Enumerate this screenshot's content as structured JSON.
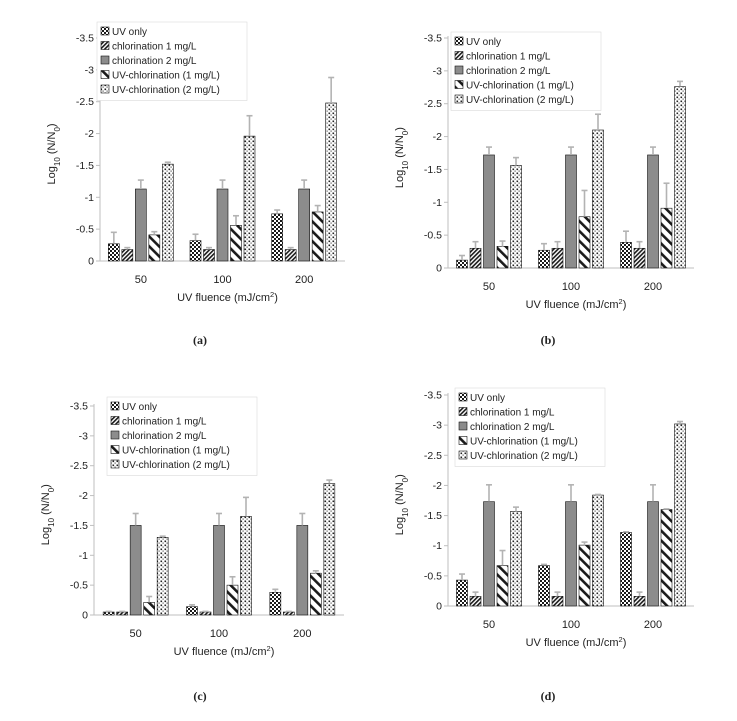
{
  "figure": {
    "panels": [
      "(a)",
      "(b)",
      "(c)",
      "(d)"
    ]
  },
  "colors": {
    "axis": "#bfbfbf",
    "text": "#222222",
    "error": "#b3b3b3",
    "grey_bar": "#8c8c8c",
    "frame": "#111111"
  },
  "chart_data": [
    {
      "type": "bar",
      "panel": "(a)",
      "categories": [
        "50",
        "100",
        "200"
      ],
      "xlabel": "UV fluence (mJ/cm²)",
      "ylabel": "Log10 (N/N0)",
      "ylim": [
        0,
        -3.5
      ],
      "yticks": [
        "0",
        "-0.5",
        "-1",
        "-1.5",
        "-2",
        "-2.5",
        "-3",
        "-3.5"
      ],
      "legend_position": "top-left",
      "series": [
        {
          "name": "UV only",
          "pattern": "checker",
          "values": [
            -0.27,
            -0.32,
            -0.74
          ],
          "errors": [
            0.18,
            0.1,
            0.06
          ]
        },
        {
          "name": "chlorination 1 mg/L",
          "pattern": "diagdense",
          "values": [
            -0.18,
            -0.18,
            -0.18
          ],
          "errors": [
            0.03,
            0.03,
            0.03
          ]
        },
        {
          "name": "chlorination 2 mg/L",
          "pattern": "grey",
          "values": [
            -1.13,
            -1.13,
            -1.13
          ],
          "errors": [
            0.14,
            0.14,
            0.14
          ]
        },
        {
          "name": "UV-chlorination (1 mg/L)",
          "pattern": "diag",
          "values": [
            -0.41,
            -0.56,
            -0.77
          ],
          "errors": [
            0.05,
            0.15,
            0.1
          ]
        },
        {
          "name": "UV-chlorination (2 mg/L)",
          "pattern": "dots",
          "values": [
            -1.52,
            -1.96,
            -2.48
          ],
          "errors": [
            0.03,
            0.32,
            0.4
          ]
        }
      ]
    },
    {
      "type": "bar",
      "panel": "(b)",
      "categories": [
        "50",
        "100",
        "200"
      ],
      "xlabel": "UV fluence (mJ/cm²)",
      "ylabel": "Log10 (N/N0)",
      "ylim": [
        0,
        -3.5
      ],
      "yticks": [
        "0",
        "-0.5",
        "-1",
        "-1.5",
        "-2",
        "-2.5",
        "-3",
        "-3.5"
      ],
      "legend_position": "top-left",
      "series": [
        {
          "name": "UV only",
          "pattern": "checker",
          "values": [
            -0.12,
            -0.27,
            -0.39
          ],
          "errors": [
            0.07,
            0.1,
            0.17
          ]
        },
        {
          "name": "chlorination 1 mg/L",
          "pattern": "diagdense",
          "values": [
            -0.3,
            -0.3,
            -0.3
          ],
          "errors": [
            0.1,
            0.1,
            0.1
          ]
        },
        {
          "name": "chlorination 2 mg/L",
          "pattern": "grey",
          "values": [
            -1.72,
            -1.72,
            -1.72
          ],
          "errors": [
            0.12,
            0.12,
            0.12
          ]
        },
        {
          "name": "UV-chlorination (1 mg/L)",
          "pattern": "diag",
          "values": [
            -0.33,
            -0.78,
            -0.91
          ],
          "errors": [
            0.08,
            0.4,
            0.38
          ]
        },
        {
          "name": "UV-chlorination (2 mg/L)",
          "pattern": "dots",
          "values": [
            -1.56,
            -2.1,
            -2.76
          ],
          "errors": [
            0.12,
            0.24,
            0.08
          ]
        }
      ]
    },
    {
      "type": "bar",
      "panel": "(c)",
      "categories": [
        "50",
        "100",
        "200"
      ],
      "xlabel": "UV fluence (mJ/cm²)",
      "ylabel": "Log10 (N/N0)",
      "ylim": [
        0,
        -3.5
      ],
      "yticks": [
        "0",
        "-0.5",
        "-1",
        "-1.5",
        "-2",
        "-2.5",
        "-3",
        "-3.5"
      ],
      "legend_position": "top-left",
      "series": [
        {
          "name": "UV only",
          "pattern": "checker",
          "values": [
            -0.05,
            -0.14,
            -0.38
          ],
          "errors": [
            0.01,
            0.03,
            0.05
          ]
        },
        {
          "name": "chlorination 1 mg/L",
          "pattern": "diagdense",
          "values": [
            -0.05,
            -0.05,
            -0.05
          ],
          "errors": [
            0.01,
            0.01,
            0.01
          ]
        },
        {
          "name": "chlorination 2 mg/L",
          "pattern": "grey",
          "values": [
            -1.5,
            -1.5,
            -1.5
          ],
          "errors": [
            0.2,
            0.2,
            0.2
          ]
        },
        {
          "name": "UV-chlorination (1 mg/L)",
          "pattern": "diag",
          "values": [
            -0.21,
            -0.5,
            -0.7
          ],
          "errors": [
            0.1,
            0.14,
            0.04
          ]
        },
        {
          "name": "UV-chlorination (2 mg/L)",
          "pattern": "dots",
          "values": [
            -1.3,
            -1.65,
            -2.2
          ],
          "errors": [
            0.02,
            0.32,
            0.06
          ]
        }
      ]
    },
    {
      "type": "bar",
      "panel": "(d)",
      "categories": [
        "50",
        "100",
        "200"
      ],
      "xlabel": "UV fluence (mJ/cm²)",
      "ylabel": "Log10 (N/N0)",
      "ylim": [
        0,
        -3.5
      ],
      "yticks": [
        "0",
        "-0.5",
        "-1",
        "-1.5",
        "-2",
        "-2.5",
        "-3",
        "-3.5"
      ],
      "legend_position": "top-left",
      "series": [
        {
          "name": "UV only",
          "pattern": "checker",
          "values": [
            -0.43,
            -0.67,
            -1.22
          ],
          "errors": [
            0.1,
            0.02,
            0.01
          ]
        },
        {
          "name": "chlorination 1 mg/L",
          "pattern": "diagdense",
          "values": [
            -0.16,
            -0.16,
            -0.16
          ],
          "errors": [
            0.07,
            0.07,
            0.07
          ]
        },
        {
          "name": "chlorination 2 mg/L",
          "pattern": "grey",
          "values": [
            -1.73,
            -1.73,
            -1.73
          ],
          "errors": [
            0.28,
            0.28,
            0.28
          ]
        },
        {
          "name": "UV-chlorination (1 mg/L)",
          "pattern": "diag",
          "values": [
            -0.67,
            -1.01,
            -1.6
          ],
          "errors": [
            0.25,
            0.05,
            0.01
          ]
        },
        {
          "name": "UV-chlorination (2 mg/L)",
          "pattern": "dots",
          "values": [
            -1.57,
            -1.84,
            -3.02
          ],
          "errors": [
            0.07,
            0.01,
            0.04
          ]
        }
      ]
    }
  ]
}
